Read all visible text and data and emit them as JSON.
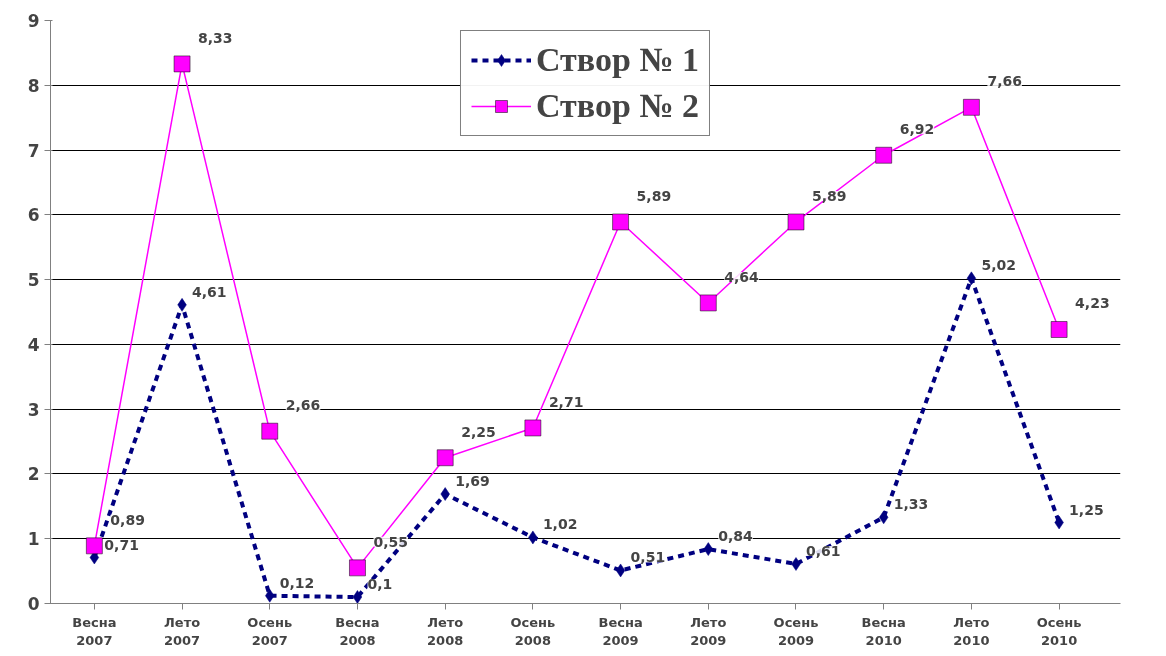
{
  "chart_data": {
    "type": "line",
    "categories": [
      "Весна\n2007",
      "Лето\n2007",
      "Осень\n2007",
      "Весна\n2008",
      "Лето\n2008",
      "Осень\n2008",
      "Весна\n2009",
      "Лето\n2009",
      "Осень\n2009",
      "Весна\n2010",
      "Лето\n2010",
      "Осень\n2010"
    ],
    "series": [
      {
        "name": "Створ № 1",
        "color": "#000080",
        "marker": "diamond",
        "line_style": "dashed",
        "values": [
          0.71,
          4.61,
          0.12,
          0.1,
          1.69,
          1.02,
          0.51,
          0.84,
          0.61,
          1.33,
          5.02,
          1.25
        ],
        "value_labels": [
          "0,71",
          "4,61",
          "0,12",
          "0,1",
          "1,69",
          "1,02",
          "0,51",
          "0,84",
          "0,61",
          "1,33",
          "5,02",
          "1,25"
        ]
      },
      {
        "name": "Створ № 2",
        "color": "#ff00ff",
        "marker": "square",
        "line_style": "solid",
        "values": [
          0.89,
          8.33,
          2.66,
          0.55,
          2.25,
          2.71,
          5.89,
          4.64,
          5.89,
          6.92,
          7.66,
          4.23
        ],
        "value_labels": [
          "0,89",
          "8,33",
          "2,66",
          "0,55",
          "2,25",
          "2,71",
          "5,89",
          "4,64",
          "5,89",
          "6,92",
          "7,66",
          "4,23"
        ]
      }
    ],
    "ylim": [
      0,
      9
    ],
    "yticks": [
      0,
      1,
      2,
      3,
      4,
      5,
      6,
      7,
      8,
      9
    ],
    "grid": "y",
    "legend": "top"
  }
}
